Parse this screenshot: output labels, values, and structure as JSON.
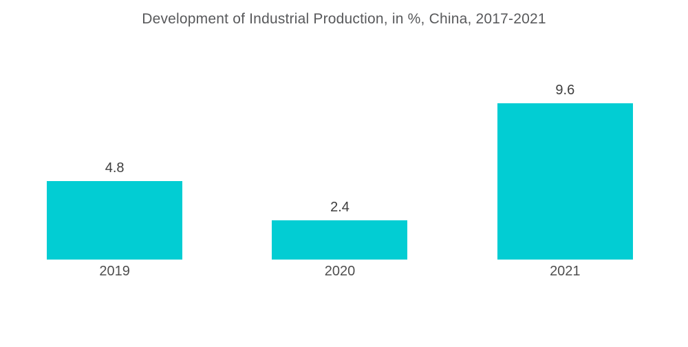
{
  "chart": {
    "title": "Development of Industrial Production, in %, China, 2017-2021"
  },
  "chart_data": {
    "type": "bar",
    "title": "Development of Industrial Production, in %, China, 2017-2021",
    "categories": [
      "2019",
      "2020",
      "2021"
    ],
    "values": [
      4.8,
      2.4,
      9.6
    ],
    "value_labels": [
      "4.8",
      "2.4",
      "9.6"
    ],
    "xlabel": "",
    "ylabel": "",
    "ylim": [
      0,
      9.6
    ],
    "grid": "off",
    "axes_visible": false,
    "legend": "none",
    "colors": {
      "bar": "#02CDD3",
      "title_text": "#58595b",
      "value_label_text": "#3d3d3d",
      "category_label_text": "#4e4e4e",
      "background": "#ffffff"
    }
  }
}
